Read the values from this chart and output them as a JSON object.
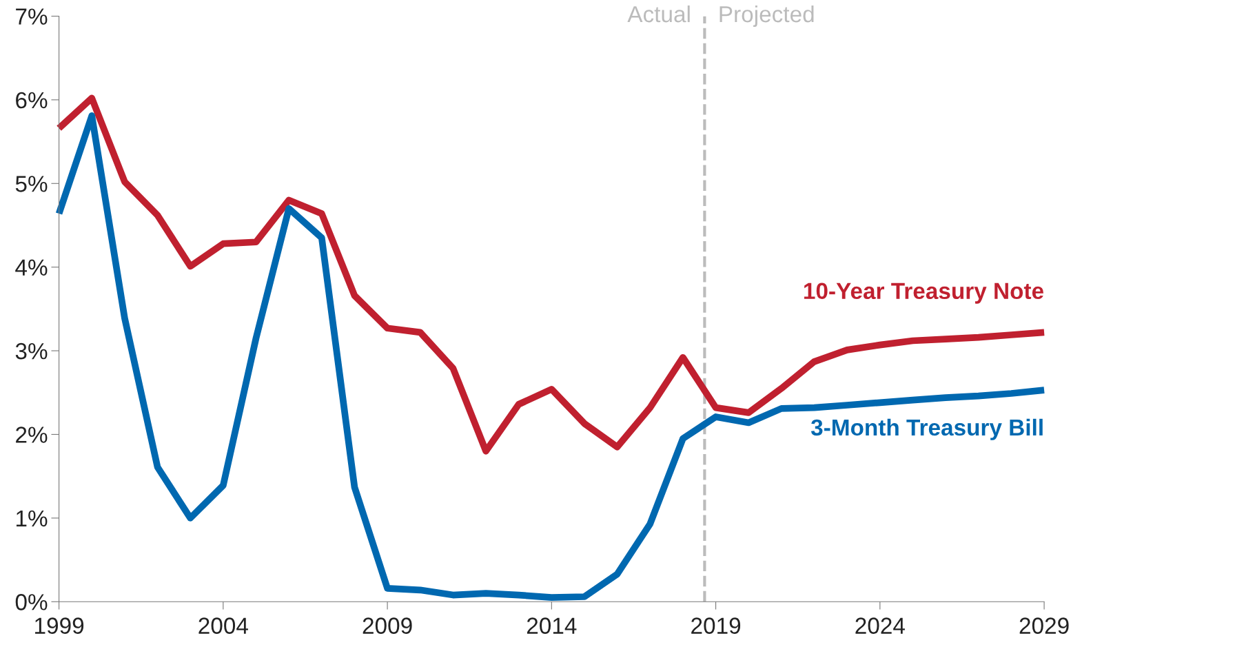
{
  "chart_data": {
    "type": "line",
    "x": [
      1999,
      2000,
      2001,
      2002,
      2003,
      2004,
      2005,
      2006,
      2007,
      2008,
      2009,
      2010,
      2011,
      2012,
      2013,
      2014,
      2015,
      2016,
      2017,
      2018,
      2019,
      2020,
      2021,
      2022,
      2023,
      2024,
      2025,
      2026,
      2027,
      2028,
      2029
    ],
    "series": [
      {
        "name": "10-Year Treasury Note",
        "color": "#c0202f",
        "values": [
          5.66,
          6.02,
          5.02,
          4.62,
          4.01,
          4.28,
          4.3,
          4.8,
          4.64,
          3.66,
          3.27,
          3.22,
          2.79,
          1.8,
          2.36,
          2.54,
          2.13,
          1.85,
          2.32,
          2.92,
          2.32,
          2.26,
          2.55,
          2.87,
          3.01,
          3.07,
          3.12,
          3.14,
          3.16,
          3.19,
          3.22
        ]
      },
      {
        "name": "3-Month Treasury Bill",
        "color": "#0068b0",
        "values": [
          4.64,
          5.81,
          3.39,
          1.61,
          1.0,
          1.39,
          3.15,
          4.7,
          4.35,
          1.37,
          0.16,
          0.14,
          0.08,
          0.1,
          0.08,
          0.05,
          0.06,
          0.33,
          0.93,
          1.95,
          2.21,
          2.14,
          2.31,
          2.32,
          2.35,
          2.38,
          2.41,
          2.44,
          2.46,
          2.49,
          2.53
        ]
      }
    ],
    "xlim": [
      1999,
      2029
    ],
    "xticks": [
      1999,
      2004,
      2009,
      2014,
      2019,
      2024,
      2029
    ],
    "ylim": [
      0,
      7
    ],
    "yticks": [
      {
        "value": 0,
        "label": "0%"
      },
      {
        "value": 1,
        "label": "1%"
      },
      {
        "value": 2,
        "label": "2%"
      },
      {
        "value": 3,
        "label": "3%"
      },
      {
        "value": 4,
        "label": "4%"
      },
      {
        "value": 5,
        "label": "5%"
      },
      {
        "value": 6,
        "label": "6%"
      },
      {
        "value": 7,
        "label": "7%"
      }
    ],
    "ref_lines": [
      {
        "axis": "x",
        "value": 2018.66,
        "color": "#bbbbbb",
        "line_style": "dashed"
      }
    ],
    "annotations": [
      "Actual",
      "Projected"
    ],
    "grid": false,
    "legend": false,
    "marker": "none",
    "line_style": "solid"
  }
}
